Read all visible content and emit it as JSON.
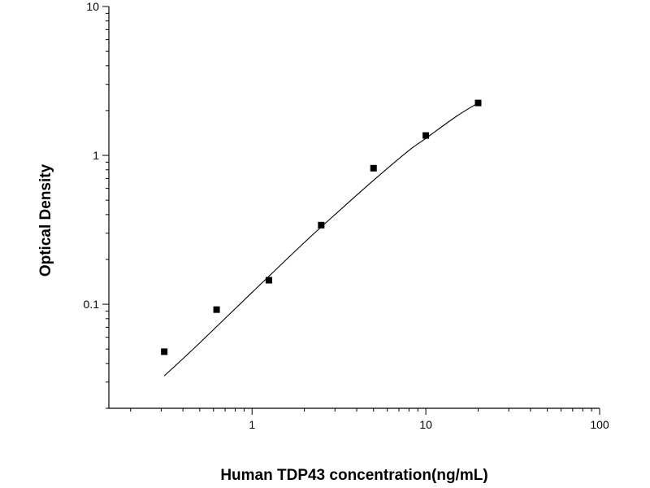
{
  "chart_data": {
    "type": "scatter",
    "title": "",
    "xlabel": "Human TDP43 concentration(ng/mL)",
    "ylabel": "Optical Density",
    "x_scale": "log",
    "y_scale": "log",
    "xlim": [
      0.15,
      100
    ],
    "ylim": [
      0.02,
      10
    ],
    "x_ticks": [
      {
        "value": 1,
        "label": "1"
      },
      {
        "value": 10,
        "label": "10"
      },
      {
        "value": 100,
        "label": "100"
      }
    ],
    "y_ticks": [
      {
        "value": 0.1,
        "label": "0.1"
      },
      {
        "value": 1,
        "label": "1"
      },
      {
        "value": 10,
        "label": "10"
      }
    ],
    "grid": false,
    "legend": "none",
    "series": [
      {
        "marker": "square",
        "color": "#000000",
        "x": [
          0.3125,
          0.625,
          1.25,
          2.5,
          5,
          10,
          20
        ],
        "y": [
          0.048,
          0.092,
          0.145,
          0.34,
          0.82,
          1.36,
          2.25
        ]
      }
    ],
    "fit_curve": {
      "color": "#000000",
      "x": [
        0.3125,
        0.5,
        1,
        2,
        3,
        5,
        8,
        10,
        15,
        20
      ],
      "y": [
        0.033,
        0.055,
        0.12,
        0.26,
        0.4,
        0.68,
        1.08,
        1.3,
        1.83,
        2.25
      ]
    }
  }
}
